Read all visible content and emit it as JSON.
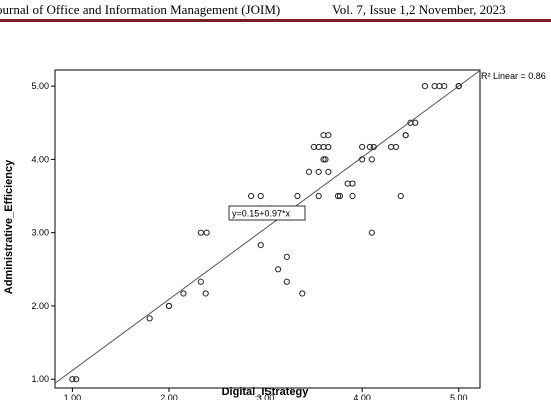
{
  "header": {
    "journal": "ournal of Office and Information Management (JOIM)",
    "issue": "Vol. 7, Issue 1,2  November, 2023"
  },
  "chart_data": {
    "type": "scatter",
    "xlabel": "Digital_IStrategy",
    "ylabel": "Administrative_Efficiency",
    "xlim": [
      0.82,
      5.22
    ],
    "ylim": [
      0.88,
      5.22
    ],
    "x_ticks": [
      "1.00",
      "2.00",
      "3.00",
      "4.00",
      "5.00"
    ],
    "y_ticks": [
      "1.00",
      "2.00",
      "3.00",
      "4.00",
      "5.00"
    ],
    "fit_line": {
      "intercept": 0.15,
      "slope": 0.97,
      "label": "y=0.15+0.97*x"
    },
    "r2_label": "R² Linear = 0.86",
    "grid": false,
    "points": [
      [
        1.0,
        1.0
      ],
      [
        1.04,
        1.0
      ],
      [
        1.8,
        1.83
      ],
      [
        2.0,
        2.0
      ],
      [
        2.0,
        2.0
      ],
      [
        2.15,
        2.17
      ],
      [
        2.33,
        2.33
      ],
      [
        2.38,
        2.17
      ],
      [
        2.33,
        3.0
      ],
      [
        2.39,
        3.0
      ],
      [
        2.85,
        3.5
      ],
      [
        2.95,
        3.5
      ],
      [
        2.95,
        3.33
      ],
      [
        3.05,
        3.33
      ],
      [
        2.95,
        2.83
      ],
      [
        3.13,
        2.5
      ],
      [
        3.22,
        2.67
      ],
      [
        3.22,
        2.33
      ],
      [
        3.38,
        2.17
      ],
      [
        3.33,
        3.5
      ],
      [
        3.45,
        3.83
      ],
      [
        3.5,
        4.17
      ],
      [
        3.55,
        4.17
      ],
      [
        3.6,
        4.17
      ],
      [
        3.65,
        4.17
      ],
      [
        3.6,
        4.33
      ],
      [
        3.65,
        4.33
      ],
      [
        3.55,
        3.83
      ],
      [
        3.65,
        3.83
      ],
      [
        3.6,
        4.0
      ],
      [
        3.62,
        4.0
      ],
      [
        3.55,
        3.5
      ],
      [
        3.75,
        3.5
      ],
      [
        3.77,
        3.5
      ],
      [
        3.85,
        3.67
      ],
      [
        3.9,
        3.67
      ],
      [
        3.9,
        3.5
      ],
      [
        4.0,
        4.17
      ],
      [
        4.0,
        4.0
      ],
      [
        4.08,
        4.17
      ],
      [
        4.12,
        4.17
      ],
      [
        4.1,
        4.0
      ],
      [
        4.1,
        3.0
      ],
      [
        4.3,
        4.17
      ],
      [
        4.35,
        4.17
      ],
      [
        4.4,
        3.5
      ],
      [
        4.45,
        4.33
      ],
      [
        4.45,
        4.33
      ],
      [
        4.5,
        4.5
      ],
      [
        4.55,
        4.5
      ],
      [
        4.65,
        5.0
      ],
      [
        4.75,
        5.0
      ],
      [
        4.8,
        5.0
      ],
      [
        4.85,
        5.0
      ],
      [
        5.0,
        5.0
      ],
      [
        5.0,
        5.0
      ]
    ]
  }
}
